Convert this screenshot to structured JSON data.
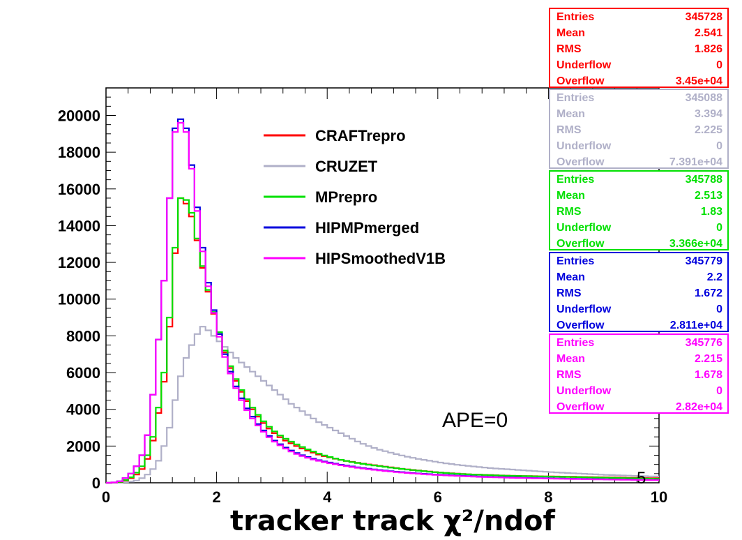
{
  "chart_data": {
    "type": "line",
    "xlabel": "tracker track χ²/ndof",
    "ylabel": "",
    "xlim": [
      0,
      10
    ],
    "ylim": [
      0,
      21500
    ],
    "x_ticks": [
      "0",
      "2",
      "4",
      "6",
      "8",
      "10"
    ],
    "y_ticks": [
      "0",
      "2000",
      "4000",
      "6000",
      "8000",
      "10000",
      "12000",
      "14000",
      "16000",
      "18000",
      "20000"
    ],
    "annotation": "APE=0",
    "corner_label": "5",
    "bin_width": 0.1,
    "series": [
      {
        "name": "CRAFTrepro",
        "color": "#ff0000",
        "values": [
          0,
          10,
          40,
          120,
          250,
          450,
          750,
          1300,
          2300,
          3800,
          5500,
          8500,
          12500,
          15500,
          15200,
          14500,
          13200,
          11700,
          10400,
          9200,
          8100,
          7100,
          6250,
          5550,
          4950,
          4450,
          4000,
          3600,
          3250,
          2950,
          2700,
          2480,
          2300,
          2150,
          2000,
          1870,
          1750,
          1640,
          1540,
          1450,
          1380,
          1310,
          1250,
          1190,
          1140,
          1090,
          1040,
          1000,
          960,
          920,
          880,
          840,
          800,
          760,
          730,
          700,
          670,
          640,
          610,
          580,
          560,
          540,
          520,
          500,
          480,
          460,
          450,
          440,
          430,
          420,
          410,
          400,
          390,
          380,
          375,
          370,
          365,
          360,
          355,
          350,
          345,
          340,
          335,
          330,
          325,
          320,
          315,
          310,
          305,
          300,
          295,
          290,
          285,
          280,
          275,
          270,
          265,
          260,
          255,
          250
        ]
      },
      {
        "name": "CRUZET",
        "color": "#b0b0c8",
        "values": [
          0,
          5,
          10,
          30,
          60,
          120,
          250,
          450,
          750,
          1200,
          2000,
          3000,
          4500,
          5800,
          6800,
          7500,
          8100,
          8500,
          8300,
          8000,
          7700,
          7400,
          7100,
          6800,
          6550,
          6300,
          6050,
          5800,
          5550,
          5300,
          5050,
          4800,
          4550,
          4300,
          4100,
          3900,
          3700,
          3500,
          3300,
          3150,
          3000,
          2850,
          2700,
          2550,
          2400,
          2250,
          2120,
          2000,
          1900,
          1800,
          1720,
          1640,
          1560,
          1490,
          1420,
          1360,
          1300,
          1250,
          1200,
          1150,
          1100,
          1060,
          1020,
          980,
          950,
          920,
          890,
          860,
          830,
          800,
          780,
          760,
          740,
          720,
          700,
          680,
          660,
          640,
          620,
          600,
          580,
          565,
          550,
          535,
          520,
          505,
          490,
          475,
          460,
          445,
          430,
          420,
          410,
          400,
          390,
          380,
          370,
          360,
          350,
          345
        ]
      },
      {
        "name": "MPrepro",
        "color": "#00e000",
        "values": [
          0,
          10,
          50,
          150,
          300,
          550,
          900,
          1500,
          2500,
          4100,
          6000,
          9000,
          12800,
          15500,
          15400,
          14700,
          13300,
          11800,
          10500,
          9300,
          8200,
          7200,
          6350,
          5650,
          5050,
          4550,
          4100,
          3700,
          3350,
          3050,
          2800,
          2580,
          2400,
          2240,
          2090,
          1950,
          1820,
          1700,
          1590,
          1490,
          1400,
          1320,
          1250,
          1190,
          1130,
          1080,
          1030,
          985,
          945,
          905,
          865,
          825,
          790,
          755,
          720,
          690,
          660,
          630,
          600,
          575,
          550,
          530,
          510,
          490,
          475,
          460,
          445,
          435,
          425,
          415,
          405,
          395,
          385,
          378,
          372,
          366,
          360,
          354,
          348,
          342,
          336,
          330,
          324,
          318,
          312,
          306,
          300,
          294,
          288,
          282,
          276,
          270,
          264,
          258,
          252,
          246,
          240,
          234,
          228,
          222
        ]
      },
      {
        "name": "HIPMPmerged",
        "color": "#0000dd",
        "values": [
          0,
          20,
          80,
          250,
          500,
          900,
          1500,
          2600,
          4800,
          7800,
          11000,
          15500,
          19300,
          19800,
          19300,
          17300,
          15000,
          12800,
          10900,
          9400,
          8100,
          7000,
          6050,
          5250,
          4600,
          4050,
          3600,
          3200,
          2850,
          2550,
          2300,
          2100,
          1920,
          1760,
          1620,
          1500,
          1400,
          1310,
          1230,
          1160,
          1100,
          1040,
          985,
          935,
          890,
          845,
          805,
          765,
          730,
          695,
          665,
          635,
          605,
          580,
          555,
          530,
          510,
          490,
          470,
          450,
          435,
          420,
          405,
          390,
          378,
          366,
          354,
          342,
          330,
          320,
          312,
          304,
          296,
          288,
          280,
          272,
          266,
          260,
          254,
          248,
          242,
          236,
          230,
          225,
          220,
          215,
          210,
          205,
          200,
          195,
          190,
          186,
          182,
          178,
          174,
          170,
          166,
          162,
          158,
          154
        ]
      },
      {
        "name": "HIPSmoothedV1B",
        "color": "#ff00ff",
        "values": [
          0,
          20,
          80,
          250,
          500,
          900,
          1500,
          2600,
          4800,
          7800,
          11000,
          15500,
          19100,
          19600,
          19100,
          17100,
          14800,
          12600,
          10700,
          9250,
          7950,
          6850,
          5950,
          5150,
          4500,
          3950,
          3500,
          3120,
          2780,
          2480,
          2240,
          2040,
          1860,
          1700,
          1570,
          1460,
          1360,
          1270,
          1195,
          1125,
          1065,
          1010,
          955,
          905,
          860,
          818,
          778,
          740,
          705,
          672,
          642,
          614,
          586,
          560,
          536,
          512,
          492,
          472,
          452,
          434,
          418,
          402,
          387,
          373,
          360,
          348,
          336,
          324,
          313,
          303,
          295,
          287,
          279,
          271,
          264,
          257,
          251,
          245,
          239,
          233,
          227,
          222,
          217,
          212,
          207,
          202,
          197,
          192,
          187,
          183,
          179,
          175,
          171,
          167,
          163,
          159,
          155,
          151,
          148,
          145
        ]
      }
    ],
    "stats": [
      {
        "color": "#ff0000",
        "rows": [
          [
            "Entries",
            "345728"
          ],
          [
            "Mean",
            "2.541"
          ],
          [
            "RMS",
            "1.826"
          ],
          [
            "Underflow",
            "0"
          ],
          [
            "Overflow",
            "3.45e+04"
          ]
        ]
      },
      {
        "color": "#b0b0c8",
        "rows": [
          [
            "Entries",
            "345088"
          ],
          [
            "Mean",
            "3.394"
          ],
          [
            "RMS",
            "2.225"
          ],
          [
            "Underflow",
            "0"
          ],
          [
            "Overflow",
            "7.391e+04"
          ]
        ]
      },
      {
        "color": "#00e000",
        "rows": [
          [
            "Entries",
            "345788"
          ],
          [
            "Mean",
            "2.513"
          ],
          [
            "RMS",
            "1.83"
          ],
          [
            "Underflow",
            "0"
          ],
          [
            "Overflow",
            "3.366e+04"
          ]
        ]
      },
      {
        "color": "#0000dd",
        "rows": [
          [
            "Entries",
            "345779"
          ],
          [
            "Mean",
            "2.2"
          ],
          [
            "RMS",
            "1.672"
          ],
          [
            "Underflow",
            "0"
          ],
          [
            "Overflow",
            "2.811e+04"
          ]
        ]
      },
      {
        "color": "#ff00ff",
        "rows": [
          [
            "Entries",
            "345776"
          ],
          [
            "Mean",
            "2.215"
          ],
          [
            "RMS",
            "1.678"
          ],
          [
            "Underflow",
            "0"
          ],
          [
            "Overflow",
            "2.82e+04"
          ]
        ]
      }
    ]
  }
}
